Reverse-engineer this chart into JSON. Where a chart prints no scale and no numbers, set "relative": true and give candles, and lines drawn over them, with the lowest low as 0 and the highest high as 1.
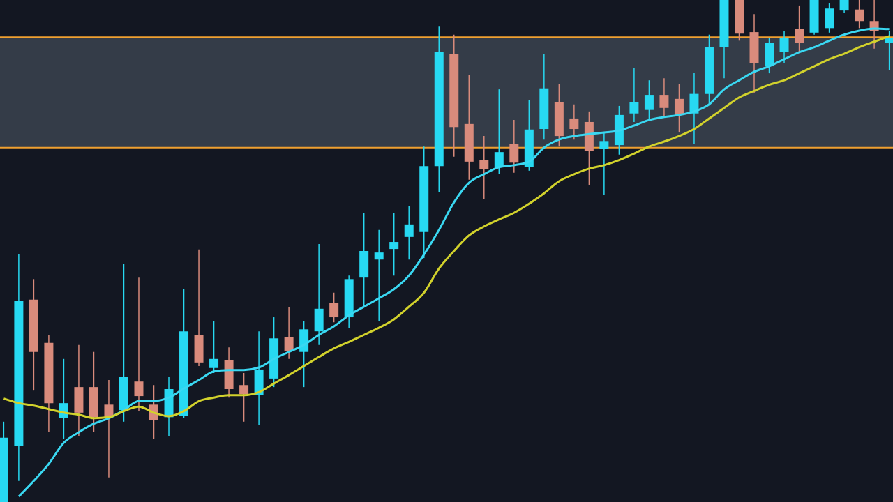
{
  "chart_data": {
    "type": "candlestick",
    "relative": true,
    "grid": false,
    "categories": [
      null,
      null,
      null,
      null,
      null,
      null,
      null,
      null,
      null,
      null,
      null,
      null,
      null,
      null,
      null,
      null,
      null,
      null,
      null,
      null,
      null,
      null,
      null,
      null,
      null,
      null,
      null,
      null,
      null,
      null,
      null,
      null,
      null,
      null,
      null,
      null,
      null,
      null,
      null,
      null,
      null,
      null,
      null,
      null,
      null,
      null,
      null,
      null,
      null,
      null,
      null,
      null,
      null,
      null,
      null,
      null,
      null,
      null,
      null,
      null
    ],
    "ohlc": [
      [
        0,
        0.16,
        0,
        0.128
      ],
      [
        0.111,
        0.493,
        0.042,
        0.4
      ],
      [
        0.403,
        0.444,
        0.222,
        0.299
      ],
      [
        0.317,
        0.333,
        0.139,
        0.197
      ],
      [
        0.167,
        0.285,
        0.125,
        0.197
      ],
      [
        0.229,
        0.313,
        0.132,
        0.178
      ],
      [
        0.229,
        0.299,
        0.139,
        0.169
      ],
      [
        0.194,
        0.243,
        0.049,
        0.169
      ],
      [
        0.183,
        0.475,
        0.16,
        0.25
      ],
      [
        0.24,
        0.447,
        0.181,
        0.211
      ],
      [
        0.194,
        0.233,
        0.125,
        0.163
      ],
      [
        0.169,
        0.25,
        0.132,
        0.225
      ],
      [
        0.171,
        0.424,
        0.167,
        0.34
      ],
      [
        0.333,
        0.503,
        0.271,
        0.278
      ],
      [
        0.267,
        0.361,
        0.257,
        0.285
      ],
      [
        0.282,
        0.308,
        0.208,
        0.225
      ],
      [
        0.233,
        0.257,
        0.16,
        0.215
      ],
      [
        0.213,
        0.34,
        0.153,
        0.264
      ],
      [
        0.246,
        0.368,
        0.229,
        0.326
      ],
      [
        0.329,
        0.389,
        0.285,
        0.301
      ],
      [
        0.299,
        0.361,
        0.229,
        0.344
      ],
      [
        0.34,
        0.514,
        0.313,
        0.385
      ],
      [
        0.396,
        0.417,
        0.358,
        0.368
      ],
      [
        0.368,
        0.451,
        0.347,
        0.444
      ],
      [
        0.447,
        0.576,
        0.389,
        0.5
      ],
      [
        0.483,
        0.542,
        0.361,
        0.497
      ],
      [
        0.504,
        0.576,
        0.451,
        0.518
      ],
      [
        0.528,
        0.59,
        0.483,
        0.553
      ],
      [
        0.538,
        0.708,
        0.486,
        0.669
      ],
      [
        0.669,
        0.947,
        0.618,
        0.896
      ],
      [
        0.893,
        0.931,
        0.688,
        0.747
      ],
      [
        0.753,
        0.85,
        0.642,
        0.678
      ],
      [
        0.681,
        0.729,
        0.604,
        0.663
      ],
      [
        0.667,
        0.822,
        0.653,
        0.697
      ],
      [
        0.713,
        0.761,
        0.656,
        0.676
      ],
      [
        0.667,
        0.801,
        0.66,
        0.742
      ],
      [
        0.743,
        0.892,
        0.722,
        0.824
      ],
      [
        0.796,
        0.833,
        0.708,
        0.729
      ],
      [
        0.764,
        0.792,
        0.722,
        0.743
      ],
      [
        0.757,
        0.778,
        0.632,
        0.699
      ],
      [
        0.704,
        0.736,
        0.611,
        0.719
      ],
      [
        0.711,
        0.789,
        0.692,
        0.771
      ],
      [
        0.774,
        0.864,
        0.757,
        0.796
      ],
      [
        0.781,
        0.84,
        0.761,
        0.811
      ],
      [
        0.811,
        0.844,
        0.767,
        0.785
      ],
      [
        0.803,
        0.833,
        0.736,
        0.771
      ],
      [
        0.774,
        0.854,
        0.713,
        0.813
      ],
      [
        0.813,
        0.931,
        0.792,
        0.906
      ],
      [
        0.906,
        1,
        0.844,
        1
      ],
      [
        1,
        1,
        0.919,
        0.933
      ],
      [
        0.936,
        0.972,
        0.815,
        0.875
      ],
      [
        0.868,
        0.924,
        0.854,
        0.914
      ],
      [
        0.896,
        0.938,
        0.875,
        0.925
      ],
      [
        0.942,
        0.989,
        0.896,
        0.914
      ],
      [
        0.935,
        1,
        0.931,
        1
      ],
      [
        0.944,
        0.993,
        0.935,
        0.983
      ],
      [
        0.979,
        1,
        0.975,
        1
      ],
      [
        0.981,
        1,
        0.944,
        0.958
      ],
      [
        0.958,
        1,
        0.903,
        0.938
      ],
      [
        0.914,
        0.938,
        0.861,
        0.924
      ]
    ],
    "colors": [
      "#27d9f2",
      "#27d9f2",
      "#d98b7c",
      "#d98b7c",
      "#27d9f2",
      "#d98b7c",
      "#d98b7c",
      "#d98b7c",
      "#27d9f2",
      "#d98b7c",
      "#d98b7c",
      "#27d9f2",
      "#27d9f2",
      "#d98b7c",
      "#27d9f2",
      "#d98b7c",
      "#d98b7c",
      "#27d9f2",
      "#27d9f2",
      "#d98b7c",
      "#27d9f2",
      "#27d9f2",
      "#d98b7c",
      "#27d9f2",
      "#27d9f2",
      "#27d9f2",
      "#27d9f2",
      "#27d9f2",
      "#27d9f2",
      "#27d9f2",
      "#d98b7c",
      "#d98b7c",
      "#d98b7c",
      "#27d9f2",
      "#d98b7c",
      "#27d9f2",
      "#27d9f2",
      "#d98b7c",
      "#d98b7c",
      "#d98b7c",
      "#27d9f2",
      "#27d9f2",
      "#27d9f2",
      "#27d9f2",
      "#d98b7c",
      "#d98b7c",
      "#27d9f2",
      "#27d9f2",
      "#27d9f2",
      "#d98b7c",
      "#d98b7c",
      "#27d9f2",
      "#27d9f2",
      "#d98b7c",
      "#27d9f2",
      "#27d9f2",
      "#27d9f2",
      "#d98b7c",
      "#d98b7c",
      "#27d9f2"
    ],
    "series": [
      {
        "type": "line",
        "color": "#3ad8f2",
        "values": [
          null,
          0.011,
          0.042,
          0.076,
          0.118,
          0.139,
          0.156,
          0.167,
          0.183,
          0.201,
          0.201,
          0.208,
          0.226,
          0.243,
          0.26,
          0.263,
          0.263,
          0.268,
          0.285,
          0.299,
          0.313,
          0.333,
          0.35,
          0.372,
          0.389,
          0.406,
          0.424,
          0.451,
          0.493,
          0.542,
          0.597,
          0.636,
          0.653,
          0.667,
          0.671,
          0.678,
          0.706,
          0.722,
          0.729,
          0.733,
          0.736,
          0.74,
          0.75,
          0.761,
          0.767,
          0.771,
          0.778,
          0.792,
          0.822,
          0.84,
          0.857,
          0.868,
          0.882,
          0.896,
          0.906,
          0.919,
          0.931,
          0.939,
          0.943,
          0.942
        ]
      },
      {
        "type": "line",
        "color": "#d2d22c",
        "values": [
          0.206,
          0.197,
          0.192,
          0.185,
          0.178,
          0.174,
          0.167,
          0.169,
          0.181,
          0.19,
          0.178,
          0.171,
          0.181,
          0.201,
          0.208,
          0.213,
          0.213,
          0.219,
          0.236,
          0.253,
          0.271,
          0.289,
          0.306,
          0.319,
          0.333,
          0.347,
          0.364,
          0.389,
          0.417,
          0.465,
          0.5,
          0.531,
          0.549,
          0.563,
          0.576,
          0.594,
          0.615,
          0.639,
          0.653,
          0.664,
          0.671,
          0.681,
          0.694,
          0.708,
          0.718,
          0.729,
          0.743,
          0.764,
          0.785,
          0.806,
          0.819,
          0.831,
          0.84,
          0.854,
          0.868,
          0.882,
          0.893,
          0.906,
          0.917,
          0.928
        ]
      }
    ],
    "bands": [
      {
        "axis": "y",
        "from": 0.706,
        "to": 0.926,
        "color": "#4b5563"
      }
    ],
    "ref_lines": [
      {
        "axis": "y",
        "value": 0.926,
        "color": "#f0a030"
      },
      {
        "axis": "y",
        "value": 0.706,
        "color": "#f0a030"
      }
    ]
  }
}
